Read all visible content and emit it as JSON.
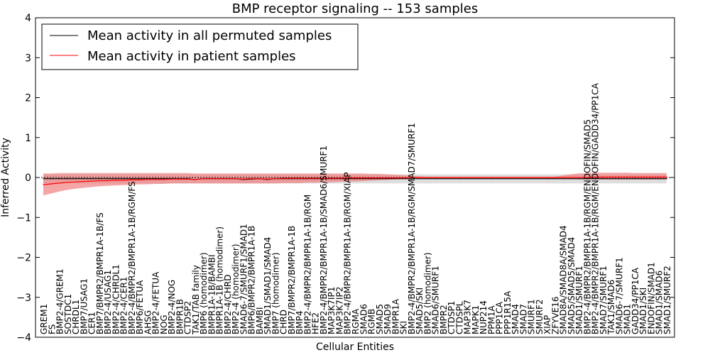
{
  "chart_data": {
    "type": "line",
    "title": "BMP receptor signaling -- 153 samples",
    "xlabel": "Cellular Entities",
    "ylabel": "Inferred Activity",
    "ylim": [
      -4,
      4
    ],
    "yticks": [
      -4,
      -3,
      -2,
      -1,
      0,
      1,
      2,
      3,
      4
    ],
    "grid": false,
    "legend_position": "top-left",
    "colors": {
      "permuted": "#000000",
      "patient": "#ff0000",
      "patient_band": "#f08080",
      "permuted_band": "#c8c8c8"
    },
    "categories": [
      "GREM1",
      "FS",
      "BMP2-4/GREM1",
      "SOSTDC1",
      "CHRDL1",
      "BMP7/USAG1",
      "CER1",
      "BMP7/BMPR2/BMPR1A-1B/FS",
      "BMP2-4/USAG1",
      "BMP2-4/CHRDL1",
      "BMP2-4/CER1",
      "BMP2-4/BMPR2/BMPR1A-1B/RGM/FS",
      "BMP6/FETUA",
      "AHSG",
      "BMP2-4/FETUA",
      "NOG",
      "BMP2-4/NOG",
      "BMPR1B",
      "CTDSP2",
      "TAK1/TAB family",
      "BMP6 (homodimer)",
      "BMPR1A-1B/BAMBI",
      "BMPR1A-1B (homodimer)",
      "BMP2-4/CHRD",
      "BMP2-4 (homodimer)",
      "SMAD6-7/SMURF1/SMAD1",
      "BMP6/BMPR2/BMPR1A-1B",
      "BAMBI",
      "SMAD1/SMAD1/SMAD4",
      "BMP7 (homodimer)",
      "CHRD",
      "BMP7/BMPR2/BMPR1A-1B",
      "BMP4",
      "BMP2-4/BMPR2/BMPR1A-1B/RGM",
      "HFE2",
      "BMP2-4/BMPR2/BMPR1A-1B/SMAD6/SMURF1",
      "MAP3K7IP1",
      "MAP3K7IP2",
      "BMP2-4/BMPR2/BMPR1A-1B/RGM/XIAP",
      "RGMA",
      "SMAD6",
      "RGMB",
      "SMAD5",
      "SMAD9",
      "BMPR1A",
      "SKI",
      "BMP2-4/BMPR2/BMPR1A-1B/RGM/SMAD7/SMURF1",
      "SMAD5/SKI",
      "BMP2 (homodimer)",
      "SMAD6/SMURF1",
      "BMPR2",
      "CTDSP1",
      "CTDSPL",
      "MAP3K7",
      "MAPK1",
      "NUP214",
      "PPM1A",
      "PPP1CA",
      "PPP1R15A",
      "SMAD4",
      "SMAD7",
      "SMURF1",
      "SMURF2",
      "XIAP",
      "ZFYVE16",
      "SMAD8A/SMAD8A/SMAD4",
      "SMAD5/SMAD5/SMAD4",
      "SMAD1/SMURF1",
      "BMP2-4/BMPR2/BMPR1A-1B/RGM/ENDOFIN/SMAD5",
      "BMP2-4/BMPR2/BMPR1A-1B/RGM/ENDOFIN/GADD34/PP1CA",
      "SMAD7/SMURF1",
      "TAK1/SMAD6",
      "SMAD6-7/SMURF1",
      "SMAD1",
      "GADD34/PP1CA",
      "SMAD1/SKI",
      "ENDOFIN/SMAD1",
      "SMAD1/SMAD6",
      "SMAD1/SMURF2"
    ],
    "series": [
      {
        "name": "Mean activity in all permuted samples",
        "color": "#000000",
        "values": [
          -0.03,
          -0.03,
          -0.03,
          -0.03,
          -0.03,
          -0.03,
          -0.03,
          -0.03,
          -0.03,
          -0.03,
          -0.03,
          -0.03,
          -0.03,
          -0.03,
          -0.03,
          -0.03,
          -0.03,
          -0.03,
          -0.03,
          -0.05,
          -0.03,
          -0.03,
          -0.03,
          -0.03,
          -0.03,
          -0.05,
          -0.04,
          -0.03,
          -0.05,
          -0.03,
          -0.03,
          -0.03,
          -0.03,
          -0.03,
          -0.03,
          -0.03,
          -0.03,
          -0.03,
          -0.03,
          -0.03,
          -0.03,
          -0.03,
          -0.03,
          -0.03,
          -0.03,
          -0.03,
          -0.03,
          -0.03,
          -0.03,
          -0.03,
          -0.03,
          -0.03,
          -0.03,
          -0.03,
          -0.03,
          -0.03,
          -0.03,
          -0.03,
          -0.03,
          -0.03,
          -0.03,
          -0.03,
          -0.03,
          -0.03,
          -0.03,
          -0.03,
          -0.03,
          -0.03,
          -0.03,
          -0.03,
          -0.03,
          -0.03,
          -0.03,
          -0.03,
          -0.03,
          -0.03,
          -0.03,
          -0.03,
          -0.03
        ],
        "band_lower": [
          -0.15,
          -0.15,
          -0.15,
          -0.15,
          -0.15,
          -0.15,
          -0.15,
          -0.15,
          -0.15,
          -0.15,
          -0.15,
          -0.15,
          -0.15,
          -0.15,
          -0.15,
          -0.15,
          -0.15,
          -0.15,
          -0.15,
          -0.15,
          -0.15,
          -0.15,
          -0.15,
          -0.15,
          -0.15,
          -0.15,
          -0.15,
          -0.15,
          -0.15,
          -0.15,
          -0.15,
          -0.15,
          -0.15,
          -0.15,
          -0.15,
          -0.15,
          -0.15,
          -0.15,
          -0.15,
          -0.15,
          -0.15,
          -0.15,
          -0.15,
          -0.15,
          -0.15,
          -0.15,
          -0.15,
          -0.15,
          -0.15,
          -0.15,
          -0.15,
          -0.15,
          -0.15,
          -0.15,
          -0.15,
          -0.15,
          -0.15,
          -0.15,
          -0.15,
          -0.15,
          -0.15,
          -0.15,
          -0.15,
          -0.15,
          -0.15,
          -0.15,
          -0.15,
          -0.15,
          -0.15,
          -0.15,
          -0.15,
          -0.15,
          -0.15,
          -0.15,
          -0.15,
          -0.15,
          -0.15,
          -0.15,
          -0.15
        ],
        "band_upper": [
          0.08,
          0.08,
          0.08,
          0.08,
          0.08,
          0.08,
          0.08,
          0.08,
          0.08,
          0.08,
          0.08,
          0.08,
          0.08,
          0.08,
          0.08,
          0.08,
          0.08,
          0.08,
          0.08,
          0.08,
          0.08,
          0.08,
          0.08,
          0.08,
          0.08,
          0.08,
          0.08,
          0.08,
          0.08,
          0.08,
          0.08,
          0.08,
          0.08,
          0.08,
          0.08,
          0.08,
          0.08,
          0.08,
          0.08,
          0.08,
          0.08,
          0.08,
          0.08,
          0.08,
          0.08,
          0.08,
          0.08,
          0.08,
          0.08,
          0.08,
          0.08,
          0.08,
          0.08,
          0.08,
          0.08,
          0.08,
          0.08,
          0.08,
          0.08,
          0.08,
          0.08,
          0.08,
          0.08,
          0.08,
          0.08,
          0.08,
          0.08,
          0.08,
          0.08,
          0.08,
          0.08,
          0.08,
          0.08,
          0.08,
          0.08,
          0.08,
          0.08,
          0.08,
          0.08
        ]
      },
      {
        "name": "Mean activity in patient samples",
        "color": "#ff0000",
        "values": [
          -0.18,
          -0.16,
          -0.14,
          -0.12,
          -0.11,
          -0.1,
          -0.09,
          -0.08,
          -0.08,
          -0.07,
          -0.07,
          -0.06,
          -0.06,
          -0.05,
          -0.05,
          -0.05,
          -0.04,
          -0.04,
          -0.04,
          -0.05,
          -0.03,
          -0.03,
          -0.03,
          -0.03,
          -0.03,
          -0.04,
          -0.03,
          -0.03,
          -0.04,
          -0.03,
          -0.02,
          -0.02,
          -0.02,
          -0.02,
          -0.02,
          -0.02,
          -0.02,
          -0.02,
          -0.01,
          -0.01,
          -0.01,
          -0.01,
          -0.01,
          -0.01,
          -0.01,
          -0.01,
          0.0,
          0.0,
          0.0,
          0.0,
          0.0,
          0.0,
          0.0,
          0.0,
          0.0,
          0.0,
          0.0,
          0.0,
          0.0,
          0.0,
          0.0,
          0.0,
          0.0,
          0.0,
          0.0,
          0.0,
          0.0,
          0.0,
          0.0,
          0.01,
          0.01,
          0.01,
          0.01,
          0.01,
          0.01,
          0.01,
          0.01,
          0.01,
          0.01
        ],
        "band_lower": [
          -0.45,
          -0.4,
          -0.35,
          -0.31,
          -0.28,
          -0.26,
          -0.24,
          -0.22,
          -0.21,
          -0.2,
          -0.19,
          -0.18,
          -0.17,
          -0.17,
          -0.16,
          -0.16,
          -0.15,
          -0.15,
          -0.15,
          -0.15,
          -0.15,
          -0.15,
          -0.15,
          -0.15,
          -0.15,
          -0.15,
          -0.15,
          -0.15,
          -0.15,
          -0.15,
          -0.14,
          -0.14,
          -0.14,
          -0.13,
          -0.13,
          -0.12,
          -0.12,
          -0.11,
          -0.1,
          -0.1,
          -0.09,
          -0.08,
          -0.07,
          -0.06,
          -0.05,
          -0.04,
          -0.03,
          -0.02,
          -0.02,
          -0.02,
          -0.02,
          -0.02,
          -0.02,
          -0.02,
          -0.02,
          -0.02,
          -0.02,
          -0.02,
          -0.02,
          -0.02,
          -0.02,
          -0.02,
          -0.02,
          -0.02,
          -0.02,
          -0.03,
          -0.04,
          -0.04,
          -0.05,
          -0.05,
          -0.05,
          -0.05,
          -0.05,
          -0.05,
          -0.05,
          -0.05,
          -0.05,
          -0.05,
          -0.05
        ],
        "band_upper": [
          0.1,
          0.1,
          0.11,
          0.11,
          0.11,
          0.11,
          0.11,
          0.11,
          0.11,
          0.11,
          0.11,
          0.11,
          0.11,
          0.11,
          0.11,
          0.11,
          0.11,
          0.11,
          0.11,
          0.1,
          0.1,
          0.1,
          0.1,
          0.1,
          0.1,
          0.1,
          0.1,
          0.1,
          0.1,
          0.1,
          0.1,
          0.1,
          0.1,
          0.1,
          0.1,
          0.1,
          0.1,
          0.1,
          0.1,
          0.1,
          0.1,
          0.09,
          0.09,
          0.08,
          0.07,
          0.06,
          0.05,
          0.03,
          0.02,
          0.02,
          0.02,
          0.02,
          0.02,
          0.02,
          0.02,
          0.02,
          0.02,
          0.02,
          0.02,
          0.02,
          0.02,
          0.02,
          0.02,
          0.02,
          0.02,
          0.05,
          0.08,
          0.1,
          0.11,
          0.12,
          0.12,
          0.12,
          0.12,
          0.12,
          0.11,
          0.11,
          0.11,
          0.11,
          0.11
        ]
      }
    ]
  }
}
